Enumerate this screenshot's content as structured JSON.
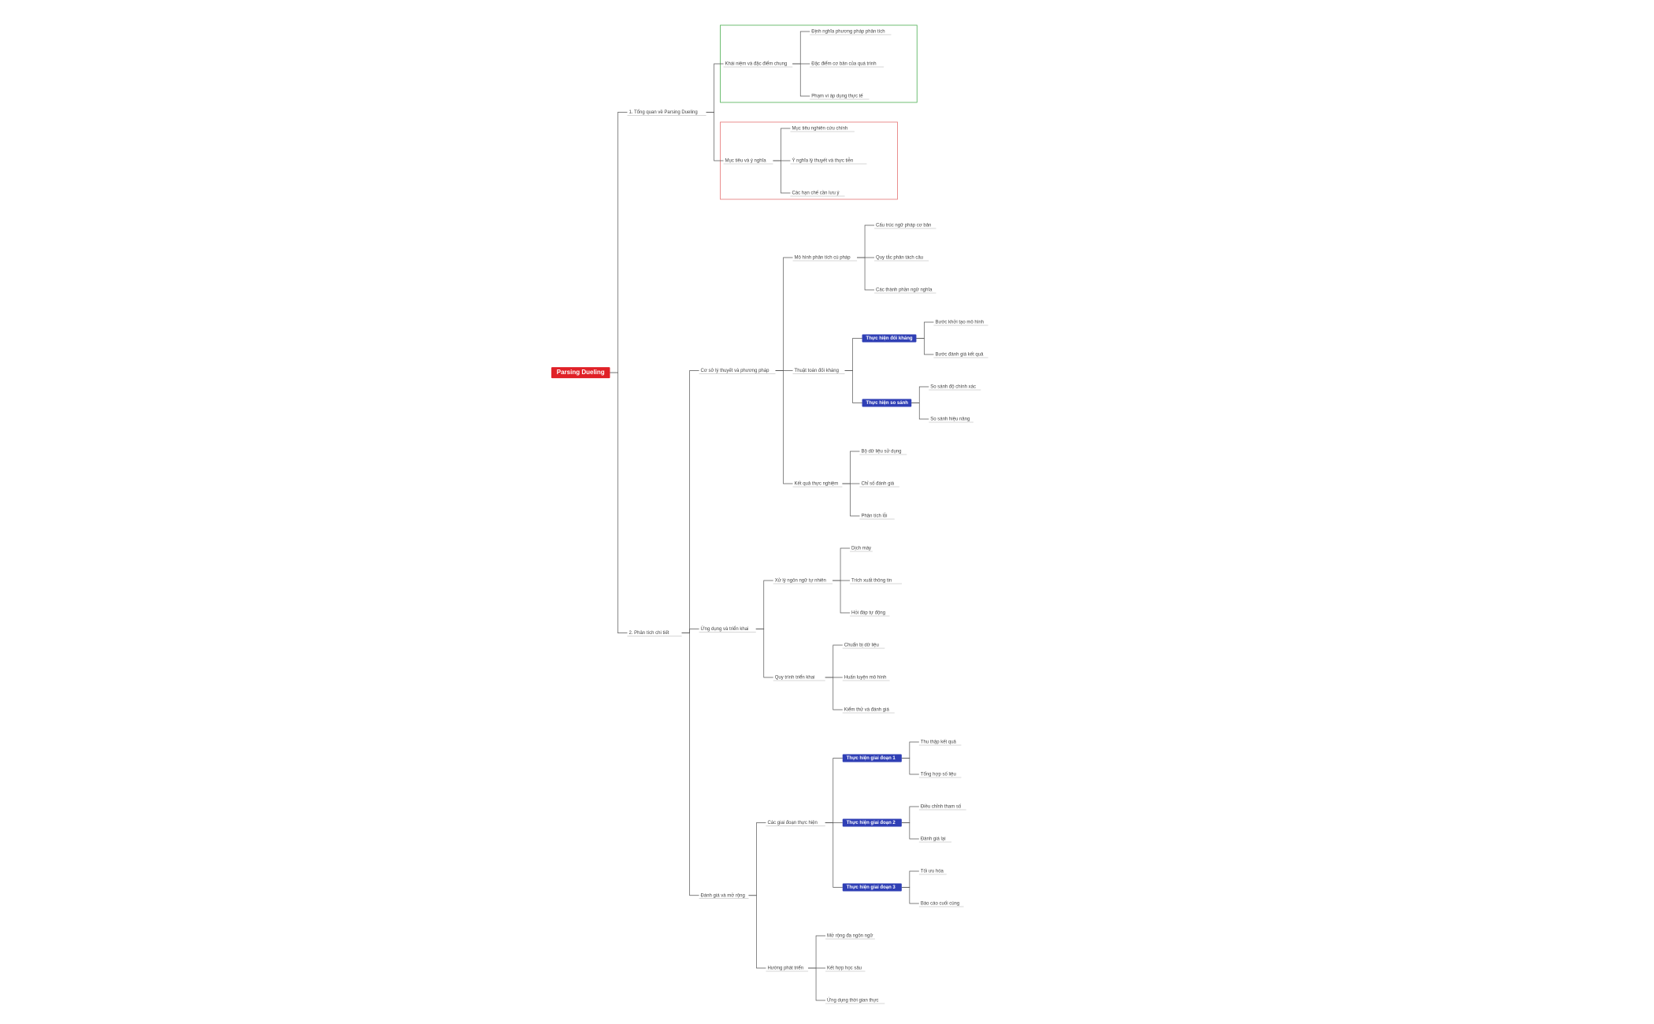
{
  "tree": {
    "label": "Parsing Dueling",
    "children": [
      {
        "label": "1. Tổng quan về Parsing Dueling",
        "children": [
          {
            "label": "Khái niệm và đặc điểm chung",
            "frame": "#4caf50",
            "children": [
              {
                "label": "Định nghĩa phương pháp phân tích"
              },
              {
                "label": "Đặc điểm cơ bản của quá trình"
              },
              {
                "label": "Phạm vi áp dụng thực tế"
              }
            ]
          },
          {
            "label": "Mục tiêu và ý nghĩa",
            "frame": "#e57373",
            "children": [
              {
                "label": "Mục tiêu nghiên cứu chính"
              },
              {
                "label": "Ý nghĩa lý thuyết và thực tiễn"
              },
              {
                "label": "Các hạn chế cần lưu ý"
              }
            ]
          }
        ]
      },
      {
        "label": "2. Phân tích chi tiết",
        "children": [
          {
            "label": "Cơ sở lý thuyết và phương pháp",
            "children": [
              {
                "label": "Mô hình phân tích cú pháp",
                "children": [
                  {
                    "label": "Cấu trúc ngữ pháp cơ bản"
                  },
                  {
                    "label": "Quy tắc phân tách câu"
                  },
                  {
                    "label": "Các thành phần ngữ nghĩa"
                  }
                ]
              },
              {
                "label": "Thuật toán đối kháng",
                "children": [
                  {
                    "label": "Thực hiện đối kháng",
                    "highlight": true,
                    "children": [
                      {
                        "label": "Bước khởi tạo mô hình"
                      },
                      {
                        "label": "Bước đánh giá kết quả"
                      }
                    ]
                  },
                  {
                    "label": "Thực hiện so sánh",
                    "highlight": true,
                    "children": [
                      {
                        "label": "So sánh độ chính xác"
                      },
                      {
                        "label": "So sánh hiệu năng"
                      }
                    ]
                  }
                ]
              },
              {
                "label": "Kết quả thực nghiệm",
                "children": [
                  {
                    "label": "Bộ dữ liệu sử dụng"
                  },
                  {
                    "label": "Chỉ số đánh giá"
                  },
                  {
                    "label": "Phân tích lỗi"
                  }
                ]
              }
            ]
          },
          {
            "label": "Ứng dụng và triển khai",
            "children": [
              {
                "label": "Xử lý ngôn ngữ tự nhiên",
                "children": [
                  {
                    "label": "Dịch máy"
                  },
                  {
                    "label": "Trích xuất thông tin"
                  },
                  {
                    "label": "Hỏi đáp tự động"
                  }
                ]
              },
              {
                "label": "Quy trình triển khai",
                "children": [
                  {
                    "label": "Chuẩn bị dữ liệu"
                  },
                  {
                    "label": "Huấn luyện mô hình"
                  },
                  {
                    "label": "Kiểm thử và đánh giá"
                  }
                ]
              }
            ]
          },
          {
            "label": "Đánh giá và mở rộng",
            "children": [
              {
                "label": "Các giai đoạn thực hiện",
                "children": [
                  {
                    "label": "Thực hiện giai đoạn 1",
                    "highlight": true,
                    "children": [
                      {
                        "label": "Thu thập kết quả"
                      },
                      {
                        "label": "Tổng hợp số liệu"
                      }
                    ]
                  },
                  {
                    "label": "Thực hiện giai đoạn 2",
                    "highlight": true,
                    "children": [
                      {
                        "label": "Điều chỉnh tham số"
                      },
                      {
                        "label": "Đánh giá lại"
                      }
                    ]
                  },
                  {
                    "label": "Thực hiện giai đoạn 3",
                    "highlight": true,
                    "children": [
                      {
                        "label": "Tối ưu hóa"
                      },
                      {
                        "label": "Báo cáo cuối cùng"
                      }
                    ]
                  }
                ]
              },
              {
                "label": "Hướng phát triển",
                "children": [
                  {
                    "label": "Mở rộng đa ngôn ngữ"
                  },
                  {
                    "label": "Kết hợp học sâu"
                  },
                  {
                    "label": "Ứng dụng thời gian thực"
                  }
                ]
              }
            ]
          }
        ]
      }
    ]
  }
}
